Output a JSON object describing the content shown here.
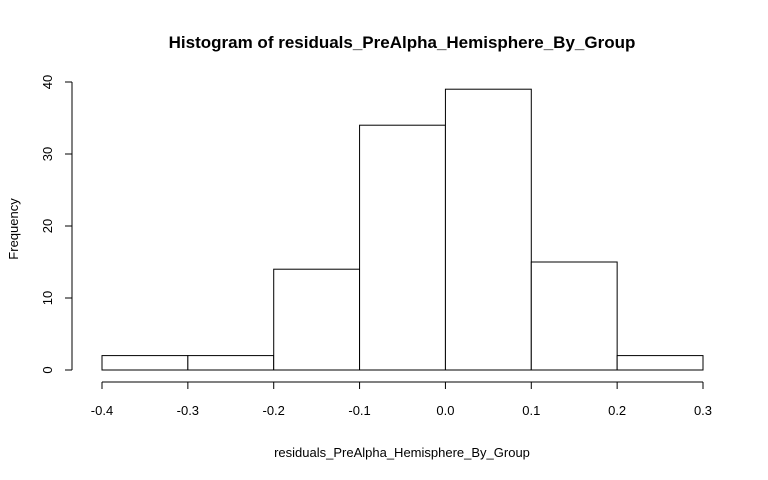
{
  "chart_data": {
    "type": "bar",
    "title": "Histogram of residuals_PreAlpha_Hemisphere_By_Group",
    "xlabel": "residuals_PreAlpha_Hemisphere_By_Group",
    "ylabel": "Frequency",
    "bins": [
      {
        "start": -0.4,
        "end": -0.3,
        "count": 2
      },
      {
        "start": -0.3,
        "end": -0.2,
        "count": 2
      },
      {
        "start": -0.2,
        "end": -0.1,
        "count": 14
      },
      {
        "start": -0.1,
        "end": 0.0,
        "count": 34
      },
      {
        "start": 0.0,
        "end": 0.1,
        "count": 39
      },
      {
        "start": 0.1,
        "end": 0.2,
        "count": 15
      },
      {
        "start": 0.2,
        "end": 0.3,
        "count": 2
      }
    ],
    "xlim": [
      -0.4,
      0.3
    ],
    "ylim": [
      0,
      40
    ],
    "xticks": [
      "-0.4",
      "-0.3",
      "-0.2",
      "-0.1",
      "0.0",
      "0.1",
      "0.2",
      "0.3"
    ],
    "yticks": [
      "0",
      "10",
      "20",
      "30",
      "40"
    ],
    "grid": false,
    "legend": "none"
  }
}
